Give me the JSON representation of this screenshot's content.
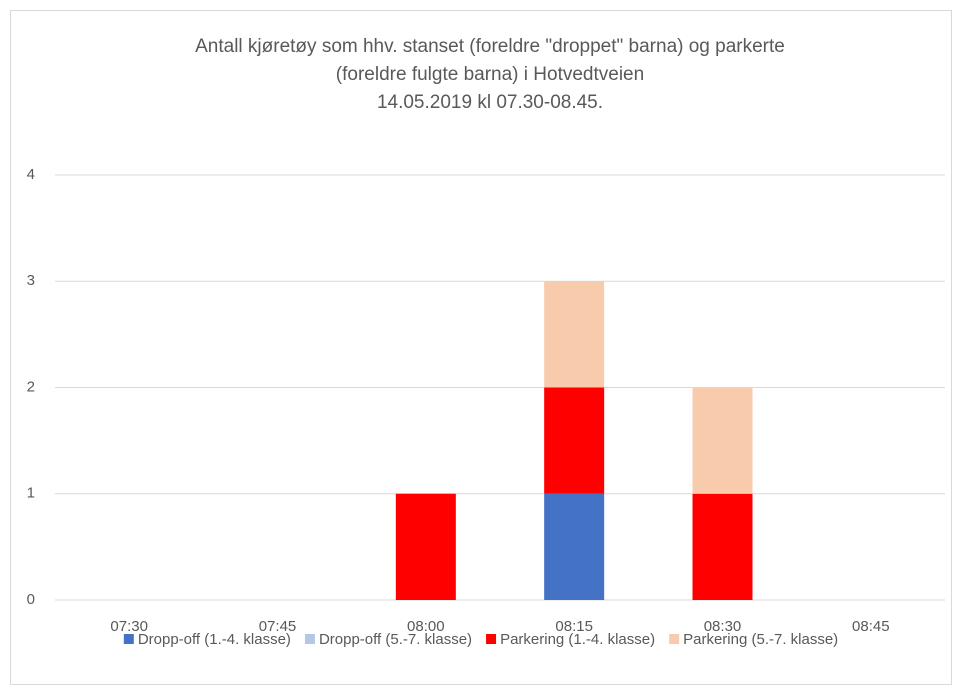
{
  "chart_data": {
    "type": "stacked-bar",
    "title": [
      "Antall kjøretøy som hhv. stanset (foreldre \"droppet\" barna) og parkerte",
      "(foreldre fulgte barna) i Hotvedtveien",
      "14.05.2019 kl 07.30-08.45."
    ],
    "categories": [
      "07:30",
      "07:45",
      "08:00",
      "08:15",
      "08:30",
      "08:45"
    ],
    "series": [
      {
        "name": "Dropp-off (1.-4. klasse)",
        "color": "#4472c4",
        "values": [
          0,
          0,
          0,
          1,
          0,
          0
        ]
      },
      {
        "name": "Dropp-off (5.-7. klasse)",
        "color": "#b4c7e7",
        "values": [
          0,
          0,
          0,
          0,
          0,
          0
        ]
      },
      {
        "name": "Parkering (1.-4. klasse)",
        "color": "#ff0000",
        "values": [
          0,
          0,
          1,
          1,
          1,
          0
        ]
      },
      {
        "name": "Parkering (5.-7. klasse)",
        "color": "#f8cbad",
        "values": [
          0,
          0,
          0,
          1,
          1,
          0
        ]
      }
    ],
    "ylim": [
      0,
      4
    ],
    "yticks": [
      0,
      1,
      2,
      3,
      4
    ],
    "grid": true,
    "legend": "bottom"
  }
}
